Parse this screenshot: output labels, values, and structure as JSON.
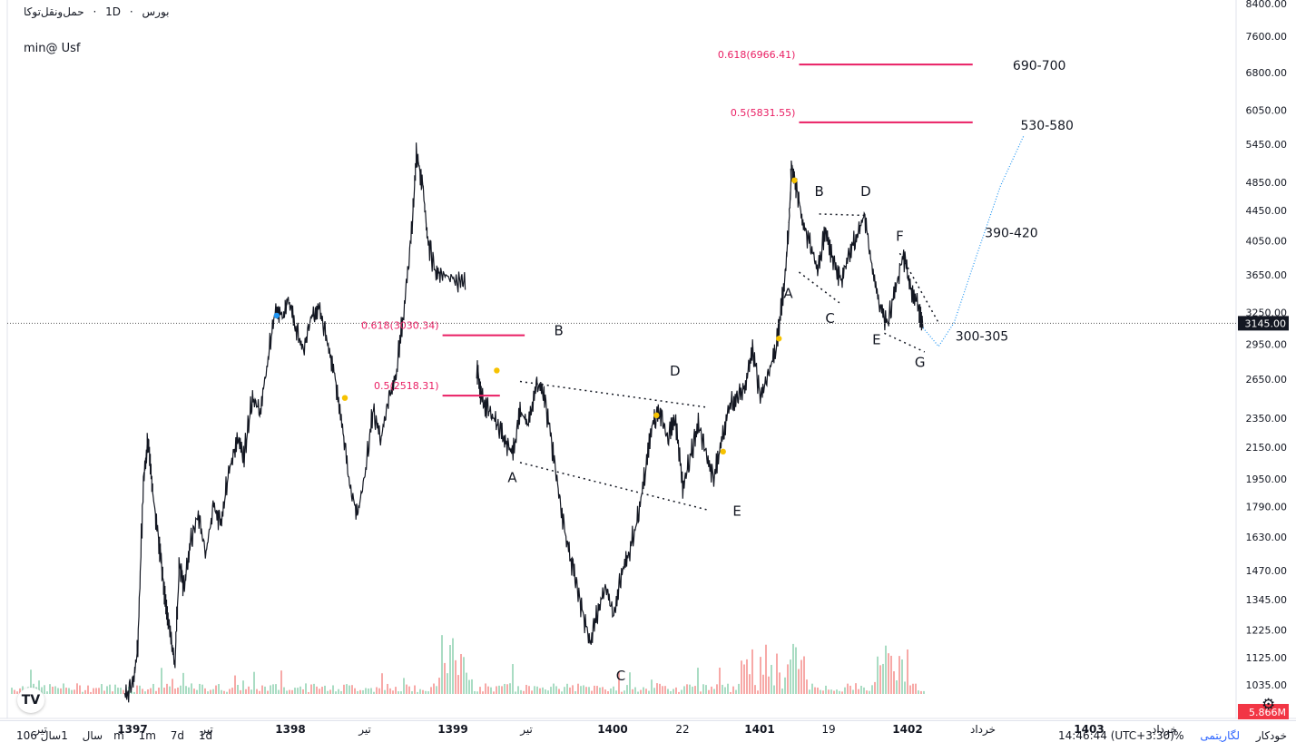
{
  "header": {
    "symbol": "حمل‌ونقل‌توکا",
    "interval": "1D",
    "exchange": "بورس",
    "separator": "·"
  },
  "study_label": "min@ Usf",
  "logo_text": "TV",
  "bottombar": {
    "ranges": [
      "10سال",
      "1سال",
      "6m",
      "1m",
      "7d",
      "1d"
    ],
    "clock": "14:46:44 (UTC+3:30)",
    "percent": "%",
    "log": "لگاریتمی",
    "auto": "خودکار"
  },
  "colors": {
    "fib": "#e91e63",
    "target_curve": "#2196f3",
    "price_tag_current": "#131722",
    "volume_tag": "#f23645",
    "marker_yellow": "#f6c200",
    "marker_blue": "#2196f3"
  },
  "chart_data": {
    "type": "line",
    "scale": "log",
    "y_ticks": [
      "8400.00",
      "7600.00",
      "6800.00",
      "6050.00",
      "5450.00",
      "4850.00",
      "4450.00",
      "4050.00",
      "3650.00",
      "3250.00",
      "2950.00",
      "2650.00",
      "2350.00",
      "2150.00",
      "1950.00",
      "1790.00",
      "1630.00",
      "1470.00",
      "1345.00",
      "1225.00",
      "1125.00",
      "1035.00"
    ],
    "y_tick_values": [
      8400,
      7600,
      6800,
      6050,
      5450,
      4850,
      4450,
      4050,
      3650,
      3250,
      2950,
      2650,
      2350,
      2150,
      1950,
      1790,
      1630,
      1470,
      1345,
      1225,
      1125,
      1035
    ],
    "current_price": "3145.00",
    "current_price_value": 3145,
    "volume_label": "5.866M",
    "x_ticks": [
      "تیر",
      "1397",
      "تیر",
      "1398",
      "تیر",
      "1399",
      "تیر",
      "1400",
      "22",
      "1401",
      "19",
      "1402",
      "خرداد",
      "1403",
      "خرداد"
    ],
    "x_tick_bold": [
      false,
      true,
      false,
      true,
      false,
      true,
      false,
      true,
      false,
      true,
      false,
      true,
      false,
      true,
      false
    ],
    "price_path": [
      [
        1396.95,
        1000
      ],
      [
        1397.0,
        1040
      ],
      [
        1397.03,
        1150
      ],
      [
        1397.07,
        1980
      ],
      [
        1397.1,
        2200
      ],
      [
        1397.13,
        1850
      ],
      [
        1397.17,
        1600
      ],
      [
        1397.2,
        1400
      ],
      [
        1397.23,
        1250
      ],
      [
        1397.27,
        1100
      ],
      [
        1397.3,
        1500
      ],
      [
        1397.33,
        1400
      ],
      [
        1397.37,
        1600
      ],
      [
        1397.42,
        1750
      ],
      [
        1397.47,
        1550
      ],
      [
        1397.52,
        1800
      ],
      [
        1397.57,
        1700
      ],
      [
        1397.62,
        2000
      ],
      [
        1397.67,
        2200
      ],
      [
        1397.72,
        2100
      ],
      [
        1397.77,
        2500
      ],
      [
        1397.82,
        2400
      ],
      [
        1397.87,
        2800
      ],
      [
        1397.92,
        3300
      ],
      [
        1397.97,
        3200
      ],
      [
        1398.0,
        3400
      ],
      [
        1398.05,
        3100
      ],
      [
        1398.1,
        2900
      ],
      [
        1398.15,
        3200
      ],
      [
        1398.2,
        3300
      ],
      [
        1398.25,
        3000
      ],
      [
        1398.3,
        2700
      ],
      [
        1398.35,
        2300
      ],
      [
        1398.4,
        1900
      ],
      [
        1398.45,
        1750
      ],
      [
        1398.5,
        2000
      ],
      [
        1398.55,
        2400
      ],
      [
        1398.6,
        2200
      ],
      [
        1398.65,
        2500
      ],
      [
        1398.7,
        2700
      ],
      [
        1398.75,
        3300
      ],
      [
        1398.8,
        4200
      ],
      [
        1398.83,
        5300
      ],
      [
        1398.87,
        4800
      ],
      [
        1398.9,
        4100
      ],
      [
        1398.95,
        3700
      ],
      [
        1399.0,
        3650
      ],
      [
        1399.1,
        3600
      ],
      [
        1399.15,
        3550
      ]
    ],
    "price_path_2": [
      [
        1399.22,
        2750
      ],
      [
        1399.25,
        2500
      ],
      [
        1399.3,
        2400
      ],
      [
        1399.35,
        2300
      ],
      [
        1399.4,
        2200
      ],
      [
        1399.45,
        2100
      ],
      [
        1399.5,
        2400
      ],
      [
        1399.55,
        2300
      ],
      [
        1399.6,
        2600
      ],
      [
        1399.65,
        2550
      ],
      [
        1399.7,
        2200
      ],
      [
        1399.75,
        1850
      ],
      [
        1399.8,
        1600
      ],
      [
        1399.85,
        1450
      ],
      [
        1399.9,
        1300
      ],
      [
        1399.95,
        1180
      ],
      [
        1400.0,
        1300
      ],
      [
        1400.05,
        1400
      ],
      [
        1400.1,
        1280
      ],
      [
        1400.15,
        1450
      ],
      [
        1400.2,
        1550
      ],
      [
        1400.25,
        1700
      ],
      [
        1400.3,
        1950
      ],
      [
        1400.35,
        2300
      ],
      [
        1400.4,
        2400
      ],
      [
        1400.45,
        2200
      ],
      [
        1400.5,
        2350
      ],
      [
        1400.55,
        1900
      ],
      [
        1400.6,
        2100
      ],
      [
        1400.65,
        2300
      ],
      [
        1400.7,
        2100
      ],
      [
        1400.75,
        1950
      ],
      [
        1400.8,
        2200
      ],
      [
        1400.85,
        2450
      ],
      [
        1400.9,
        2500
      ],
      [
        1400.95,
        2600
      ],
      [
        1401.0,
        2900
      ],
      [
        1401.05,
        2500
      ],
      [
        1401.1,
        2700
      ],
      [
        1401.15,
        2900
      ],
      [
        1401.2,
        3500
      ],
      [
        1401.23,
        4200
      ],
      [
        1401.25,
        5100
      ],
      [
        1401.28,
        4800
      ],
      [
        1401.32,
        4300
      ],
      [
        1401.37,
        4000
      ],
      [
        1401.42,
        3700
      ],
      [
        1401.47,
        4200
      ],
      [
        1401.52,
        3800
      ],
      [
        1401.57,
        3600
      ],
      [
        1401.62,
        3900
      ],
      [
        1401.67,
        4100
      ],
      [
        1401.72,
        4400
      ],
      [
        1401.77,
        3700
      ],
      [
        1401.82,
        3300
      ],
      [
        1401.87,
        3150
      ],
      [
        1401.92,
        3500
      ],
      [
        1401.97,
        3900
      ],
      [
        1402.02,
        3500
      ],
      [
        1402.07,
        3300
      ],
      [
        1402.1,
        3100
      ]
    ],
    "fib_levels": [
      {
        "label": "0.618(3030.34)",
        "value": 3030.34,
        "x0": 1399.0,
        "x1": 1399.53
      },
      {
        "label": "0.5(2518.31)",
        "value": 2518.31,
        "x0": 1399.0,
        "x1": 1399.37
      },
      {
        "label": "0.618(6966.41)",
        "value": 6966.41,
        "x0": 1401.3,
        "x1": 1402.42
      },
      {
        "label": "0.5(5831.55)",
        "value": 5831.55,
        "x0": 1401.3,
        "x1": 1402.42
      }
    ],
    "wave_labels_1": [
      "A",
      "B",
      "C",
      "D",
      "E"
    ],
    "wave_labels_2": [
      "A",
      "B",
      "C",
      "D",
      "E",
      "F",
      "G"
    ],
    "target_labels": [
      "690-700",
      "530-580",
      "390-420",
      "300-305"
    ]
  }
}
